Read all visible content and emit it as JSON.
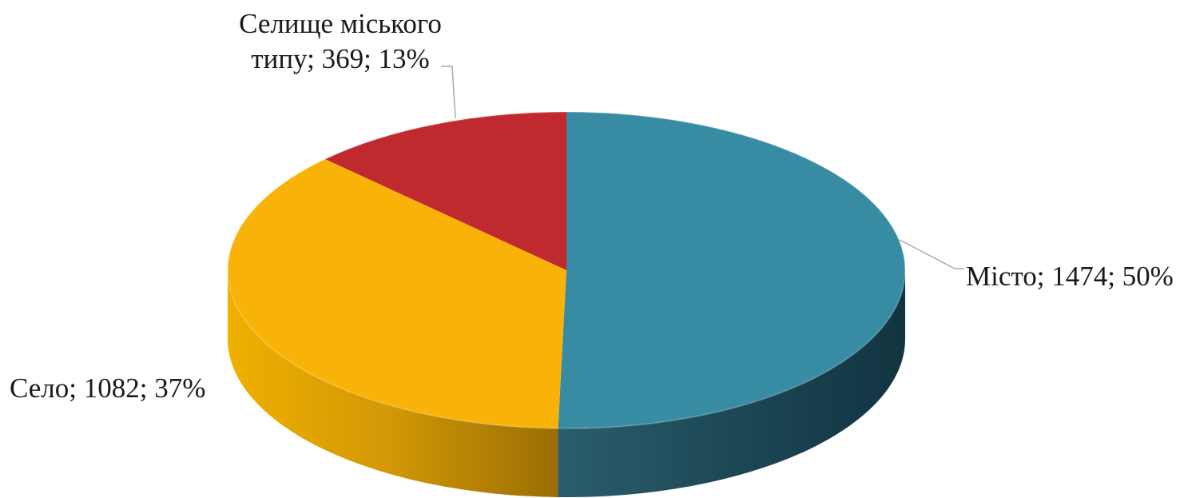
{
  "chart_data": {
    "type": "pie",
    "variant": "3d",
    "title": "",
    "legend": "none",
    "slices": [
      {
        "label": "Місто",
        "value": 1474,
        "percent": 50,
        "color": "#378ca3",
        "label_text": "Місто; 1474; 50%"
      },
      {
        "label": "Село",
        "value": 1082,
        "percent": 37,
        "color": "#f9b208",
        "label_text": "Село; 1082; 37%"
      },
      {
        "label": "Селище міського типу",
        "value": 369,
        "percent": 13,
        "color": "#c0292e",
        "label_lines": [
          "Селище міського",
          "типу; 369; 13%"
        ]
      }
    ]
  }
}
